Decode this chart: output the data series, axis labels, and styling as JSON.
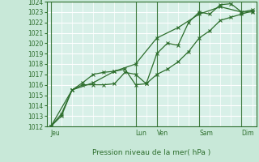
{
  "title": "",
  "xlabel": "Pression niveau de la mer( hPa )",
  "ylim": [
    1012,
    1024
  ],
  "yticks": [
    1012,
    1013,
    1014,
    1015,
    1016,
    1017,
    1018,
    1019,
    1020,
    1021,
    1022,
    1023,
    1024
  ],
  "bg_color": "#c8e8d8",
  "plot_bg_color": "#d8f0e8",
  "grid_color": "#ffffff",
  "line_color": "#2d6e2d",
  "day_labels": [
    "Jeu",
    "Lun",
    "Ven",
    "Sam",
    "Dim"
  ],
  "day_positions": [
    0,
    4,
    5,
    7,
    9
  ],
  "line1_x": [
    0,
    0.5,
    1,
    1.5,
    2,
    2.5,
    3,
    3.5,
    4,
    4.5,
    5,
    5.5,
    6,
    6.5,
    7,
    7.5,
    8,
    8.5,
    9,
    9.5
  ],
  "line1_y": [
    1012,
    1013,
    1015.5,
    1016,
    1016,
    1016,
    1016.1,
    1017.2,
    1017,
    1016.1,
    1019,
    1020,
    1019.8,
    1022,
    1023,
    1022.8,
    1023.7,
    1023.8,
    1023,
    1023
  ],
  "line2_x": [
    0,
    0.5,
    1,
    1.5,
    2,
    2.5,
    3,
    3.5,
    4,
    4.5,
    5,
    5.5,
    6,
    6.5,
    7,
    7.5,
    8,
    8.5,
    9,
    9.5
  ],
  "line2_y": [
    1012,
    1013.2,
    1015.5,
    1016.2,
    1017,
    1017.2,
    1017.3,
    1017.5,
    1016,
    1016.1,
    1017,
    1017.5,
    1018.2,
    1019.2,
    1020.5,
    1021.2,
    1022.2,
    1022.5,
    1022.8,
    1023.1
  ],
  "line3_x": [
    0,
    1,
    2,
    3,
    4,
    5,
    6,
    7,
    8,
    9,
    9.5
  ],
  "line3_y": [
    1012,
    1015.5,
    1016.2,
    1017.3,
    1018,
    1020.5,
    1021.5,
    1022.8,
    1023.5,
    1023,
    1023.2
  ]
}
